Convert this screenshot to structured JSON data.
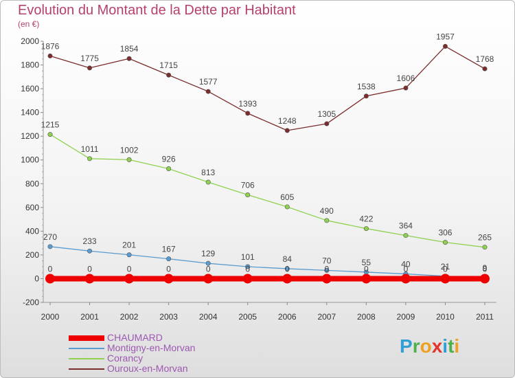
{
  "title": "Evolution du Montant de la Dette par Habitant",
  "subtitle": "(en €)",
  "logo": {
    "text": "Proxiti",
    "letters": [
      {
        "char": "P",
        "color": "#2f9fd4"
      },
      {
        "char": "r",
        "color": "#4cb04c"
      },
      {
        "char": "o",
        "color": "#f0a020"
      },
      {
        "char": "x",
        "color": "#e2342b"
      },
      {
        "char": "i",
        "color": "#2f9fd4"
      },
      {
        "char": "t",
        "color": "#4cb04c"
      },
      {
        "char": "i",
        "color": "#f0a020"
      }
    ]
  },
  "chart_data": {
    "type": "line",
    "title": "Evolution du Montant de la Dette par Habitant",
    "subtitle": "(en €)",
    "x": [
      2000,
      2001,
      2002,
      2003,
      2004,
      2005,
      2006,
      2007,
      2008,
      2009,
      2010,
      2011
    ],
    "ylim": [
      -200,
      2000
    ],
    "yticks": [
      -200,
      0,
      200,
      400,
      600,
      800,
      1000,
      1200,
      1400,
      1600,
      1800,
      2000
    ],
    "grid": false,
    "legend_position": "bottom-left",
    "series": [
      {
        "name": "CHAUMARD",
        "color": "#ee0000",
        "values": [
          0,
          0,
          0,
          0,
          0,
          0,
          0,
          0,
          0,
          0,
          0,
          0
        ],
        "labels": [
          "0",
          "0",
          "0",
          "0",
          "0",
          "0",
          "0",
          "0",
          "0",
          "0",
          "0",
          "0"
        ]
      },
      {
        "name": "Montigny-en-Morvan",
        "color": "#5a9bd0",
        "values": [
          270,
          233,
          201,
          167,
          129,
          101,
          84,
          70,
          55,
          40,
          21,
          9
        ],
        "labels": [
          "270",
          "233",
          "201",
          "167",
          "129",
          "101",
          "84",
          "70",
          "55",
          "40",
          "21",
          "9"
        ]
      },
      {
        "name": "Corancy",
        "color": "#8fd14f",
        "values": [
          1215,
          1011,
          1002,
          926,
          813,
          706,
          605,
          490,
          422,
          364,
          306,
          265
        ],
        "labels": [
          "1215",
          "1011",
          "1002",
          "926",
          "813",
          "706",
          "605",
          "490",
          "422",
          "364",
          "306",
          "265"
        ]
      },
      {
        "name": "Ouroux-en-Morvan",
        "color": "#7b2c2c",
        "values": [
          1876,
          1775,
          1854,
          1715,
          1577,
          1393,
          1248,
          1305,
          1538,
          1606,
          1957,
          1768
        ],
        "labels": [
          "1876",
          "1775",
          "1854",
          "1715",
          "1577",
          "1393",
          "1248",
          "1305",
          "1538",
          "1606",
          "1957",
          "1768"
        ]
      }
    ]
  }
}
